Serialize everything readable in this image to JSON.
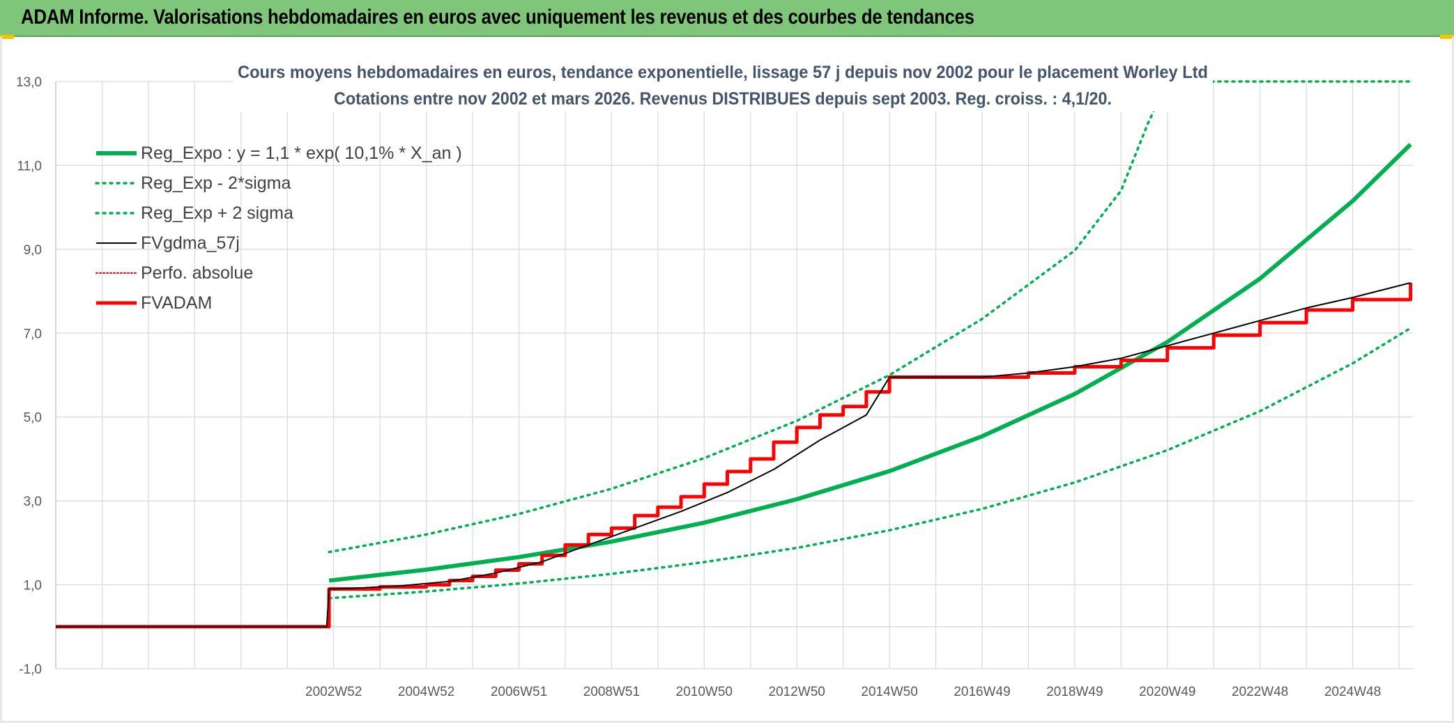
{
  "header": {
    "banner_title": "ADAM Informe. Valorisations hebdomadaires en euros avec uniquement les revenus et des courbes de tendances"
  },
  "colors": {
    "banner": "#7fc67a",
    "green": "#00b050",
    "red": "#ff0000",
    "black": "#000000",
    "subtitle": "#44546a",
    "grid": "#d9d9d9"
  },
  "chart_data": {
    "type": "line",
    "title_line1": "Cours moyens hebdomadaires en euros, tendance exponentielle, lissage 57 j depuis nov 2002 pour le placement Worley Ltd",
    "title_line2": "Cotations entre nov 2002 et mars 2026. Revenus DISTRIBUES depuis sept 2003. Reg. croiss. : 4,1/20.",
    "ylim": [
      -1,
      13
    ],
    "yticks": [
      "-1,0",
      "1,0",
      "3,0",
      "5,0",
      "7,0",
      "9,0",
      "11,0",
      "13,0"
    ],
    "ytick_values": [
      -1,
      1,
      3,
      5,
      7,
      9,
      11,
      13
    ],
    "xlim": [
      1997,
      2026.3
    ],
    "xticks": [
      "2002W52",
      "2004W52",
      "2006W51",
      "2008W51",
      "2010W50",
      "2012W50",
      "2014W50",
      "2016W49",
      "2018W49",
      "2020W49",
      "2022W48",
      "2024W48"
    ],
    "xtick_values": [
      2003,
      2005,
      2007,
      2009,
      2011,
      2013,
      2015,
      2017,
      2019,
      2021,
      2023,
      2025
    ],
    "grid": true,
    "legend_position": "top-left",
    "series": [
      {
        "name": "Reg_Expo : y = 1,1 * exp( 10,1% *  X_an )",
        "style": "solid-thick",
        "color": "#00b050",
        "x": [
          2002.9,
          2005,
          2007,
          2009,
          2011,
          2013,
          2015,
          2017,
          2019,
          2021,
          2023,
          2025,
          2026.25
        ],
        "y": [
          1.1,
          1.36,
          1.66,
          2.03,
          2.48,
          3.04,
          3.71,
          4.54,
          5.55,
          6.79,
          8.3,
          10.15,
          11.5
        ]
      },
      {
        "name": "Reg_Exp - 2*sigma",
        "style": "dotted",
        "color": "#00b050",
        "x": [
          2002.9,
          2005,
          2007,
          2009,
          2011,
          2013,
          2015,
          2017,
          2019,
          2021,
          2023,
          2025,
          2026.25
        ],
        "y": [
          0.68,
          0.84,
          1.03,
          1.26,
          1.54,
          1.88,
          2.3,
          2.81,
          3.44,
          4.21,
          5.14,
          6.28,
          7.12
        ]
      },
      {
        "name": "Reg_Exp + 2 sigma",
        "style": "dotted",
        "color": "#00b050",
        "x": [
          2002.9,
          2005,
          2007,
          2009,
          2011,
          2013,
          2015,
          2017,
          2019,
          2020,
          2020.58,
          2021,
          2026.25
        ],
        "y": [
          1.78,
          2.2,
          2.69,
          3.29,
          4.02,
          4.91,
          6.0,
          7.34,
          8.97,
          10.4,
          12.0,
          13.0,
          13.0
        ]
      },
      {
        "name": "FVgdma_57j",
        "style": "solid-thin",
        "color": "#000000",
        "x": [
          1997,
          2002.85,
          2002.9,
          2003.5,
          2004.5,
          2005.5,
          2006.5,
          2007.5,
          2008.5,
          2009.5,
          2010.5,
          2011.5,
          2012.5,
          2013.5,
          2014.5,
          2015,
          2017,
          2018,
          2019,
          2020,
          2021,
          2022,
          2023,
          2024,
          2025,
          2026.25
        ],
        "y": [
          0,
          0,
          0.9,
          0.92,
          0.98,
          1.08,
          1.28,
          1.55,
          1.95,
          2.35,
          2.75,
          3.2,
          3.75,
          4.45,
          5.05,
          5.95,
          5.95,
          6.05,
          6.2,
          6.4,
          6.7,
          7.0,
          7.3,
          7.6,
          7.85,
          8.2
        ]
      },
      {
        "name": "Perfo. absolue",
        "style": "dotted-thin",
        "color": "#ff0000",
        "x": [],
        "y": []
      },
      {
        "name": "FVADAM",
        "style": "step-thick",
        "color": "#ff0000",
        "x": [
          1997,
          2002.88,
          2002.9,
          2004.0,
          2005.0,
          2005.5,
          2006.0,
          2006.5,
          2007.0,
          2007.5,
          2008.0,
          2008.5,
          2009.0,
          2009.5,
          2010.0,
          2010.5,
          2011.0,
          2011.5,
          2012.0,
          2012.5,
          2013.0,
          2013.5,
          2014.0,
          2014.5,
          2015.0,
          2016.0,
          2017.0,
          2018.0,
          2019.0,
          2020.0,
          2021.0,
          2022.0,
          2023.0,
          2024.0,
          2025.0,
          2026.25
        ],
        "y": [
          0,
          0,
          0.9,
          0.95,
          1.0,
          1.1,
          1.2,
          1.35,
          1.5,
          1.7,
          1.95,
          2.2,
          2.35,
          2.65,
          2.85,
          3.1,
          3.4,
          3.7,
          4.0,
          4.4,
          4.75,
          5.05,
          5.25,
          5.6,
          5.95,
          5.95,
          5.95,
          6.05,
          6.2,
          6.35,
          6.65,
          6.95,
          7.25,
          7.55,
          7.8,
          8.2
        ]
      }
    ]
  }
}
